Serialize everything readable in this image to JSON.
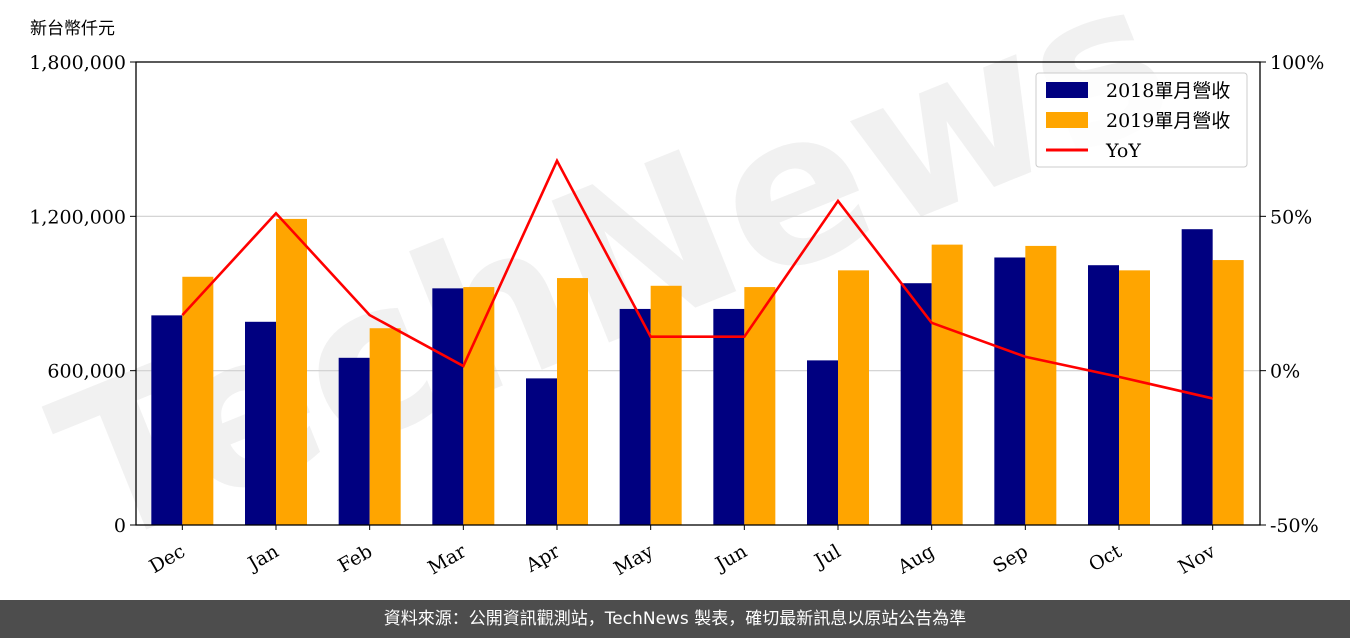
{
  "y_unit_label": "新台幣仟元",
  "footer_text": "資料來源：公開資訊觀測站，TechNews 製表，確切最新訊息以原站公告為準",
  "watermark_text": "TechNews",
  "chart_data": {
    "type": "bar",
    "categories": [
      "Dec",
      "Jan",
      "Feb",
      "Mar",
      "Apr",
      "May",
      "Jun",
      "Jul",
      "Aug",
      "Sep",
      "Oct",
      "Nov"
    ],
    "series": [
      {
        "name": "2018單月營收",
        "kind": "bar",
        "color": "#000080",
        "values": [
          815000,
          790000,
          650000,
          920000,
          570000,
          840000,
          840000,
          640000,
          940000,
          1040000,
          1010000,
          1150000
        ]
      },
      {
        "name": "2019單月營收",
        "kind": "bar",
        "color": "#FFA500",
        "values": [
          965000,
          1190000,
          765000,
          925000,
          960000,
          930000,
          925000,
          990000,
          1090000,
          1085000,
          990000,
          1030000
        ]
      },
      {
        "name": "YoY",
        "kind": "line",
        "axis": "right",
        "color": "#FF0000",
        "values": [
          18,
          51,
          18,
          1.5,
          68,
          11,
          11,
          55,
          15.5,
          4.5,
          -2,
          -9
        ]
      }
    ],
    "ylim": [
      0,
      1800000
    ],
    "yticks": [
      "0",
      "600,000",
      "1,200,000",
      "1,800,000"
    ],
    "y2lim": [
      -50,
      100
    ],
    "y2ticks": [
      "-50%",
      "0%",
      "50%",
      "100%"
    ],
    "grid": "horizontal",
    "legend_position": "top-right"
  }
}
